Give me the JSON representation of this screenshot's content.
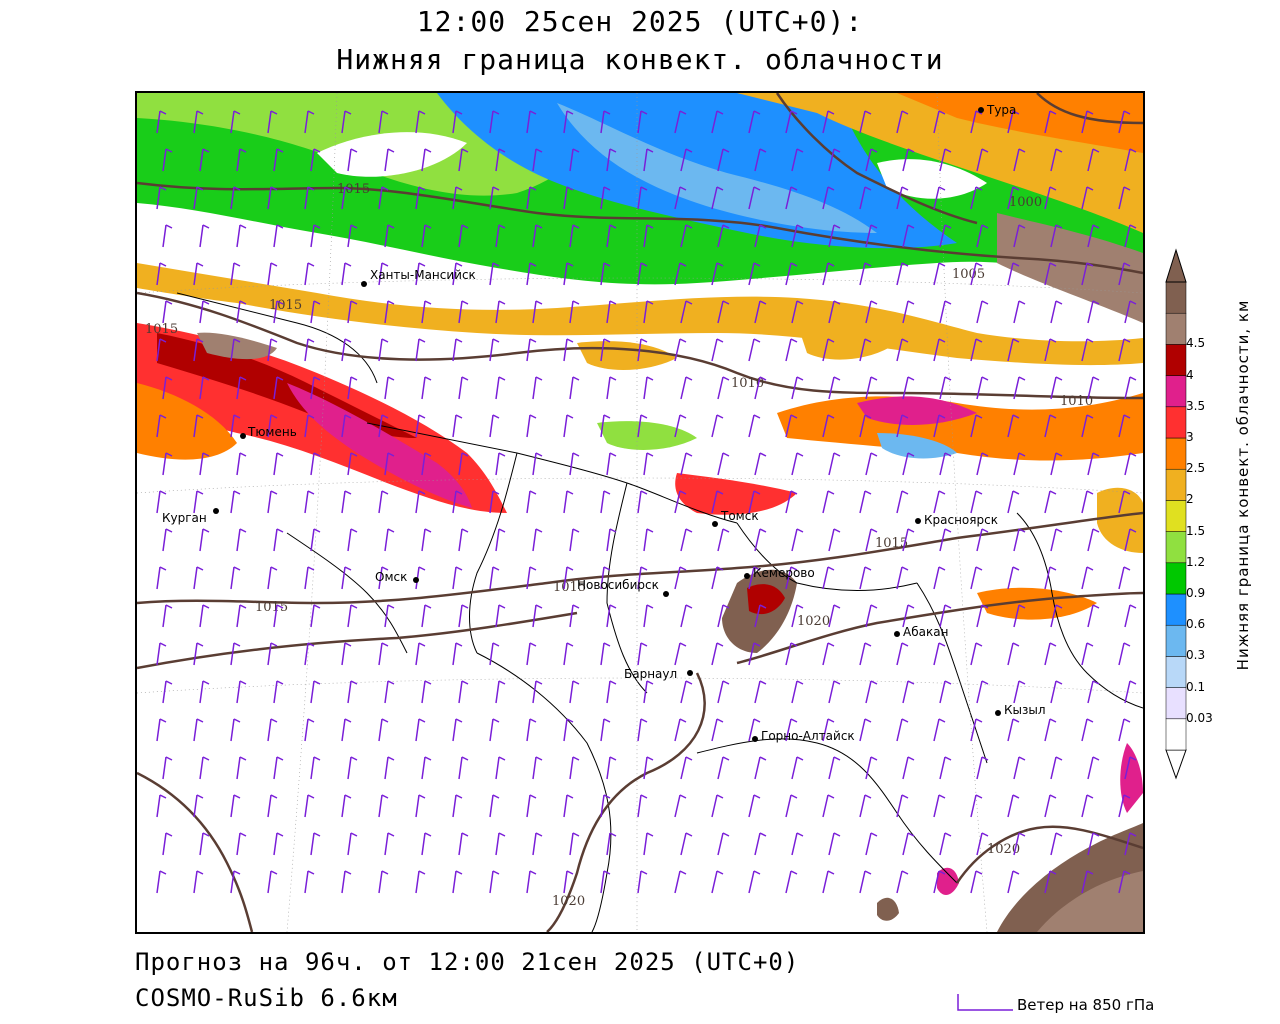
{
  "title": {
    "line1": "12:00 25сен 2025 (UTC+0):",
    "line2": "Нижняя граница конвект. облачности"
  },
  "footer": {
    "forecast": "Прогноз на 96ч. от 12:00 21сен 2025 (UTC+0)",
    "model": "COSMO-RuSib 6.6км",
    "wind_legend": "Ветер на 850 гПа"
  },
  "legend": {
    "title": "Нижняя граница конвект. облачности, км",
    "colors": [
      "#ffffff",
      "#e8e0ff",
      "#b8d8f8",
      "#6cb8f0",
      "#1e90ff",
      "#00c800",
      "#90e040",
      "#e0e020",
      "#f0b020",
      "#ff8000",
      "#ff3030",
      "#e0208c",
      "#b00000",
      "#a08070",
      "#806050"
    ],
    "labels": [
      "0.03",
      "0.1",
      "0.3",
      "0.6",
      "0.9",
      "1.2",
      "1.5",
      "2",
      "2.5",
      "3",
      "3.5",
      "4",
      "4.5"
    ]
  },
  "cities": [
    {
      "name": "Тура"
    },
    {
      "name": "Ханты-Мансийск"
    },
    {
      "name": "Тюмень"
    },
    {
      "name": "Курган"
    },
    {
      "name": "Омск"
    },
    {
      "name": "Новосибирск"
    },
    {
      "name": "Томск"
    },
    {
      "name": "Красноярск"
    },
    {
      "name": "Кемерово"
    },
    {
      "name": "Абакан"
    },
    {
      "name": "Барнаул"
    },
    {
      "name": "Горно-Алтайск"
    },
    {
      "name": "Кызыл"
    }
  ],
  "isobar_labels": [
    "1015",
    "1015",
    "1015",
    "1015",
    "1015",
    "1000",
    "1005",
    "1010",
    "1010",
    "1015",
    "1020",
    "1020",
    "1020"
  ],
  "colors": {
    "isobar": "#5a3d33",
    "border": "#000000",
    "wind_barb": "#7a1fd8"
  }
}
